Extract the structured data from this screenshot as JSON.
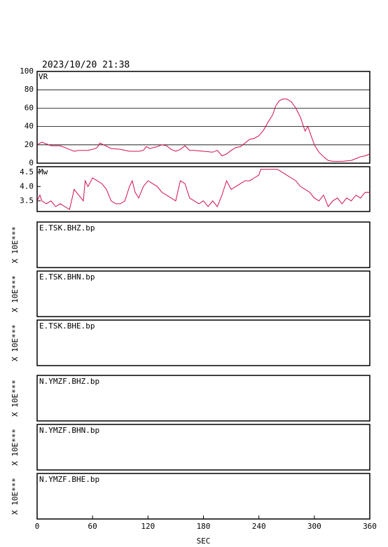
{
  "chart_data": [
    {
      "type": "line",
      "title": "2023/10/20 21:38",
      "label": "VR",
      "color": "#d0104c",
      "xlim": [
        0,
        360
      ],
      "ylim": [
        0,
        100
      ],
      "yticks": [
        0,
        20,
        40,
        60,
        80,
        100
      ],
      "grid": true,
      "x": [
        0,
        5,
        10,
        15,
        20,
        25,
        30,
        35,
        40,
        45,
        50,
        55,
        60,
        65,
        68,
        72,
        80,
        90,
        100,
        110,
        115,
        118,
        122,
        130,
        135,
        140,
        145,
        150,
        155,
        160,
        165,
        170,
        180,
        190,
        195,
        200,
        205,
        210,
        215,
        220,
        225,
        230,
        235,
        240,
        245,
        250,
        255,
        258,
        262,
        266,
        270,
        275,
        280,
        285,
        290,
        293,
        300,
        305,
        310,
        315,
        320,
        330,
        340,
        345,
        350,
        355,
        360
      ],
      "values": [
        20,
        23,
        21,
        19,
        19,
        19,
        17,
        15,
        13,
        14,
        14,
        14,
        15,
        17,
        22,
        20,
        16,
        15,
        13,
        13,
        14,
        18,
        16,
        18,
        20,
        19,
        15,
        13,
        15,
        19,
        14,
        14,
        13,
        12,
        14,
        8,
        10,
        14,
        17,
        18,
        22,
        26,
        27,
        30,
        36,
        45,
        53,
        62,
        68,
        70,
        70,
        67,
        60,
        50,
        35,
        40,
        20,
        12,
        7,
        3,
        2,
        2,
        3,
        5,
        7,
        8,
        10
      ]
    },
    {
      "type": "line",
      "label": "Mw",
      "color": "#d0104c",
      "xlim": [
        0,
        360
      ],
      "ylim": [
        3.13,
        4.69
      ],
      "yticks": [
        3.5,
        {
          "value": 4,
          "label": "4.0"
        },
        4.5
      ],
      "grid": false,
      "x": [
        0,
        3,
        5,
        10,
        15,
        20,
        25,
        30,
        35,
        38,
        40,
        45,
        50,
        52,
        55,
        60,
        65,
        70,
        75,
        80,
        85,
        90,
        95,
        100,
        103,
        106,
        110,
        115,
        120,
        125,
        130,
        135,
        140,
        145,
        150,
        155,
        160,
        165,
        170,
        175,
        180,
        185,
        190,
        195,
        200,
        205,
        210,
        215,
        220,
        225,
        230,
        235,
        240,
        242,
        250,
        255,
        260,
        265,
        270,
        275,
        280,
        285,
        290,
        295,
        300,
        305,
        310,
        315,
        320,
        325,
        330,
        335,
        340,
        345,
        350,
        355,
        360
      ],
      "values": [
        3.5,
        3.7,
        3.5,
        3.4,
        3.5,
        3.3,
        3.4,
        3.3,
        3.2,
        3.6,
        3.9,
        3.7,
        3.5,
        4.2,
        4.0,
        4.3,
        4.2,
        4.1,
        3.9,
        3.5,
        3.4,
        3.4,
        3.5,
        4.0,
        4.2,
        3.8,
        3.6,
        4.0,
        4.2,
        4.1,
        4.0,
        3.8,
        3.7,
        3.6,
        3.5,
        4.2,
        4.1,
        3.6,
        3.5,
        3.4,
        3.5,
        3.3,
        3.5,
        3.3,
        3.7,
        4.2,
        3.9,
        4.0,
        4.1,
        4.2,
        4.2,
        4.3,
        4.4,
        4.6,
        4.6,
        4.6,
        4.6,
        4.5,
        4.4,
        4.3,
        4.2,
        4.0,
        3.9,
        3.8,
        3.6,
        3.5,
        3.7,
        3.3,
        3.5,
        3.6,
        3.4,
        3.6,
        3.5,
        3.7,
        3.6,
        3.8,
        3.8
      ]
    },
    {
      "type": "waveform",
      "title": "E.TSK.BHZ.bp",
      "ylabel": "X 10E***"
    },
    {
      "type": "waveform",
      "title": "E.TSK.BHN.bp",
      "ylabel": "X 10E***"
    },
    {
      "type": "waveform",
      "title": "E.TSK.BHE.bp",
      "ylabel": "X 10E***"
    },
    {
      "type": "waveform",
      "title": "N.YMZF.BHZ.bp",
      "ylabel": "X 10E***"
    },
    {
      "type": "waveform",
      "title": "N.YMZF.BHN.bp",
      "ylabel": "X 10E***"
    },
    {
      "type": "waveform",
      "title": "N.YMZF.BHE.bp",
      "ylabel": "X 10E***",
      "xlim": [
        0,
        360
      ],
      "xticks": [
        0,
        60,
        120,
        180,
        240,
        300,
        360
      ],
      "xlabel": "SEC"
    }
  ]
}
